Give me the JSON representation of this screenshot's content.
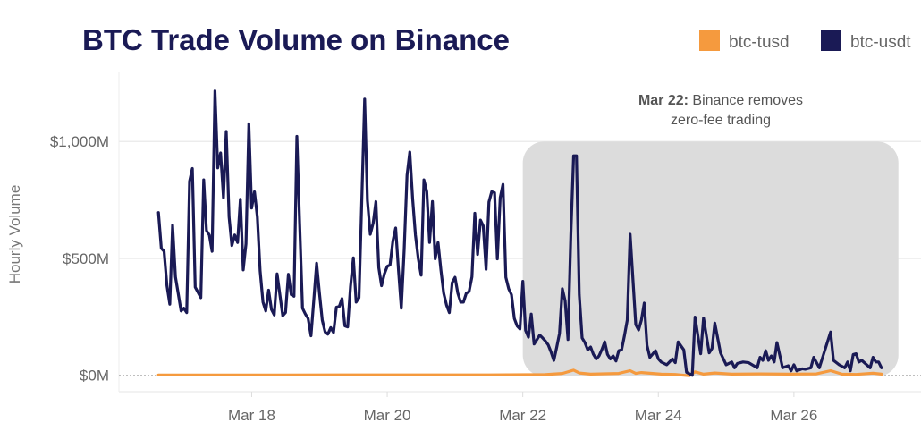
{
  "chart_data": {
    "type": "line",
    "title": "BTC Trade Volume on Binance",
    "ylabel": "Hourly Volume",
    "xlabel": "",
    "ylim": [
      -70,
      1280
    ],
    "x_range": [
      "Mar 16 01:00",
      "Mar 27 21:00"
    ],
    "grid": "horizontal",
    "legend_placement": "top-right",
    "y_ticks": [
      {
        "value": 0,
        "label": "$0M"
      },
      {
        "value": 500,
        "label": "$500M"
      },
      {
        "value": 1000,
        "label": "$1,000M"
      }
    ],
    "x_ticks": [
      {
        "value": "Mar 18 00:00",
        "label": "Mar 18"
      },
      {
        "value": "Mar 20 00:00",
        "label": "Mar 20"
      },
      {
        "value": "Mar 22 00:00",
        "label": "Mar 22"
      },
      {
        "value": "Mar 24 00:00",
        "label": "Mar 24"
      },
      {
        "value": "Mar 26 00:00",
        "label": "Mar 26"
      }
    ],
    "highlight": {
      "x_start": "Mar 22 00:00",
      "x_end": "Mar 27 13:00",
      "y_start": -5,
      "y_end": 1000,
      "color": "#dcdcdc"
    },
    "annotation": {
      "bold": "Mar 22:",
      "line1": "Binance removes",
      "line2": "zero-fee trading"
    },
    "series": [
      {
        "name": "btc-tusd",
        "color": "#f59a3e",
        "points": [
          [
            "Mar 16 15:00",
            1
          ],
          [
            "Mar 17 12:00",
            1
          ],
          [
            "Mar 18 12:00",
            1
          ],
          [
            "Mar 19 12:00",
            2
          ],
          [
            "Mar 20 12:00",
            2
          ],
          [
            "Mar 21 12:00",
            2
          ],
          [
            "Mar 22 08:00",
            3
          ],
          [
            "Mar 22 14:00",
            8
          ],
          [
            "Mar 22 18:00",
            22
          ],
          [
            "Mar 22 20:00",
            10
          ],
          [
            "Mar 23 00:00",
            5
          ],
          [
            "Mar 23 10:00",
            8
          ],
          [
            "Mar 23 14:00",
            20
          ],
          [
            "Mar 23 16:00",
            8
          ],
          [
            "Mar 23 18:00",
            12
          ],
          [
            "Mar 24 01:00",
            5
          ],
          [
            "Mar 24 06:00",
            4
          ],
          [
            "Mar 24 11:00",
            -2
          ],
          [
            "Mar 24 13:00",
            15
          ],
          [
            "Mar 24 16:00",
            5
          ],
          [
            "Mar 24 20:00",
            10
          ],
          [
            "Mar 25 02:00",
            5
          ],
          [
            "Mar 25 12:00",
            6
          ],
          [
            "Mar 25 22:00",
            5
          ],
          [
            "Mar 26 08:00",
            6
          ],
          [
            "Mar 26 13:00",
            20
          ],
          [
            "Mar 26 17:00",
            5
          ],
          [
            "Mar 26 22:00",
            4
          ],
          [
            "Mar 27 04:00",
            9
          ],
          [
            "Mar 27 07:00",
            5
          ]
        ]
      },
      {
        "name": "btc-usdt",
        "color": "#1a1a55",
        "points": [
          [
            "Mar 16 15:00",
            696
          ],
          [
            "Mar 16 16:00",
            543
          ],
          [
            "Mar 16 17:00",
            530
          ],
          [
            "Mar 16 18:00",
            383
          ],
          [
            "Mar 16 19:00",
            304
          ],
          [
            "Mar 16 20:00",
            642
          ],
          [
            "Mar 16 21:00",
            421
          ],
          [
            "Mar 16 22:00",
            350
          ],
          [
            "Mar 16 23:00",
            275
          ],
          [
            "Mar 17 00:00",
            287
          ],
          [
            "Mar 17 01:00",
            268
          ],
          [
            "Mar 17 02:00",
            830
          ],
          [
            "Mar 17 03:00",
            884
          ],
          [
            "Mar 17 04:00",
            377
          ],
          [
            "Mar 17 05:00",
            355
          ],
          [
            "Mar 17 06:00",
            332
          ],
          [
            "Mar 17 07:00",
            836
          ],
          [
            "Mar 17 08:00",
            619
          ],
          [
            "Mar 17 09:00",
            600
          ],
          [
            "Mar 17 10:00",
            530
          ],
          [
            "Mar 17 11:00",
            1216
          ],
          [
            "Mar 17 12:00",
            887
          ],
          [
            "Mar 17 13:00",
            951
          ],
          [
            "Mar 17 14:00",
            760
          ],
          [
            "Mar 17 15:00",
            1043
          ],
          [
            "Mar 17 16:00",
            677
          ],
          [
            "Mar 17 17:00",
            555
          ],
          [
            "Mar 17 18:00",
            600
          ],
          [
            "Mar 17 19:00",
            568
          ],
          [
            "Mar 17 20:00",
            753
          ],
          [
            "Mar 17 21:00",
            451
          ],
          [
            "Mar 17 22:00",
            562
          ],
          [
            "Mar 17 23:00",
            1076
          ],
          [
            "Mar 18 00:00",
            715
          ],
          [
            "Mar 18 01:00",
            785
          ],
          [
            "Mar 18 02:00",
            677
          ],
          [
            "Mar 18 03:00",
            447
          ],
          [
            "Mar 18 04:00",
            313
          ],
          [
            "Mar 18 05:00",
            275
          ],
          [
            "Mar 18 06:00",
            364
          ],
          [
            "Mar 18 07:00",
            281
          ],
          [
            "Mar 18 08:00",
            258
          ],
          [
            "Mar 18 09:00",
            434
          ],
          [
            "Mar 18 10:00",
            345
          ],
          [
            "Mar 18 11:00",
            255
          ],
          [
            "Mar 18 12:00",
            268
          ],
          [
            "Mar 18 13:00",
            432
          ],
          [
            "Mar 18 14:00",
            345
          ],
          [
            "Mar 18 15:00",
            338
          ],
          [
            "Mar 18 16:00",
            1022
          ],
          [
            "Mar 18 17:00",
            650
          ],
          [
            "Mar 18 18:00",
            287
          ],
          [
            "Mar 18 19:00",
            262
          ],
          [
            "Mar 18 20:00",
            243
          ],
          [
            "Mar 18 21:00",
            169
          ],
          [
            "Mar 18 22:00",
            320
          ],
          [
            "Mar 18 23:00",
            479
          ],
          [
            "Mar 19 00:00",
            350
          ],
          [
            "Mar 19 01:00",
            236
          ],
          [
            "Mar 19 02:00",
            185
          ],
          [
            "Mar 19 03:00",
            176
          ],
          [
            "Mar 19 04:00",
            204
          ],
          [
            "Mar 19 05:00",
            183
          ],
          [
            "Mar 19 06:00",
            291
          ],
          [
            "Mar 19 07:00",
            294
          ],
          [
            "Mar 19 08:00",
            328
          ],
          [
            "Mar 19 09:00",
            211
          ],
          [
            "Mar 19 10:00",
            207
          ],
          [
            "Mar 19 11:00",
            380
          ],
          [
            "Mar 19 12:00",
            502
          ],
          [
            "Mar 19 13:00",
            313
          ],
          [
            "Mar 19 14:00",
            332
          ],
          [
            "Mar 19 15:00",
            750
          ],
          [
            "Mar 19 16:00",
            1181
          ],
          [
            "Mar 19 17:00",
            747
          ],
          [
            "Mar 19 18:00",
            603
          ],
          [
            "Mar 19 19:00",
            651
          ],
          [
            "Mar 19 20:00",
            743
          ],
          [
            "Mar 19 21:00",
            460
          ],
          [
            "Mar 19 22:00",
            383
          ],
          [
            "Mar 19 23:00",
            434
          ],
          [
            "Mar 20 00:00",
            466
          ],
          [
            "Mar 20 01:00",
            472
          ],
          [
            "Mar 20 02:00",
            575
          ],
          [
            "Mar 20 03:00",
            630
          ],
          [
            "Mar 20 04:00",
            447
          ],
          [
            "Mar 20 05:00",
            287
          ],
          [
            "Mar 20 06:00",
            536
          ],
          [
            "Mar 20 07:00",
            856
          ],
          [
            "Mar 20 08:00",
            955
          ],
          [
            "Mar 20 09:00",
            753
          ],
          [
            "Mar 20 10:00",
            600
          ],
          [
            "Mar 20 11:00",
            498
          ],
          [
            "Mar 20 12:00",
            428
          ],
          [
            "Mar 20 13:00",
            836
          ],
          [
            "Mar 20 14:00",
            785
          ],
          [
            "Mar 20 15:00",
            568
          ],
          [
            "Mar 20 16:00",
            743
          ],
          [
            "Mar 20 17:00",
            498
          ],
          [
            "Mar 20 18:00",
            568
          ],
          [
            "Mar 20 19:00",
            450
          ],
          [
            "Mar 20 20:00",
            351
          ],
          [
            "Mar 20 21:00",
            300
          ],
          [
            "Mar 20 22:00",
            268
          ],
          [
            "Mar 20 23:00",
            396
          ],
          [
            "Mar 21 00:00",
            419
          ],
          [
            "Mar 21 01:00",
            351
          ],
          [
            "Mar 21 02:00",
            313
          ],
          [
            "Mar 21 03:00",
            313
          ],
          [
            "Mar 21 04:00",
            351
          ],
          [
            "Mar 21 05:00",
            358
          ],
          [
            "Mar 21 06:00",
            421
          ],
          [
            "Mar 21 07:00",
            693
          ],
          [
            "Mar 21 08:00",
            517
          ],
          [
            "Mar 21 09:00",
            664
          ],
          [
            "Mar 21 10:00",
            639
          ],
          [
            "Mar 21 11:00",
            453
          ],
          [
            "Mar 21 12:00",
            741
          ],
          [
            "Mar 21 13:00",
            785
          ],
          [
            "Mar 21 14:00",
            781
          ],
          [
            "Mar 21 15:00",
            498
          ],
          [
            "Mar 21 16:00",
            760
          ],
          [
            "Mar 21 17:00",
            817
          ],
          [
            "Mar 21 18:00",
            419
          ],
          [
            "Mar 21 19:00",
            370
          ],
          [
            "Mar 21 20:00",
            345
          ],
          [
            "Mar 21 21:00",
            243
          ],
          [
            "Mar 21 22:00",
            211
          ],
          [
            "Mar 21 23:00",
            198
          ],
          [
            "Mar 22 00:00",
            402
          ],
          [
            "Mar 22 01:00",
            192
          ],
          [
            "Mar 22 02:00",
            163
          ],
          [
            "Mar 22 03:00",
            262
          ],
          [
            "Mar 22 04:00",
            134
          ],
          [
            "Mar 22 05:00",
            153
          ],
          [
            "Mar 22 06:00",
            172
          ],
          [
            "Mar 22 07:00",
            160
          ],
          [
            "Mar 22 08:00",
            147
          ],
          [
            "Mar 22 09:00",
            130
          ],
          [
            "Mar 22 10:00",
            100
          ],
          [
            "Mar 22 11:00",
            64
          ],
          [
            "Mar 22 12:00",
            120
          ],
          [
            "Mar 22 13:00",
            179
          ],
          [
            "Mar 22 14:00",
            370
          ],
          [
            "Mar 22 15:00",
            319
          ],
          [
            "Mar 22 16:00",
            153
          ],
          [
            "Mar 22 17:00",
            600
          ],
          [
            "Mar 22 18:00",
            939
          ],
          [
            "Mar 22 19:00",
            939
          ],
          [
            "Mar 22 20:00",
            345
          ],
          [
            "Mar 22 21:00",
            160
          ],
          [
            "Mar 22 22:00",
            140
          ],
          [
            "Mar 22 23:00",
            109
          ],
          [
            "Mar 23 00:00",
            121
          ],
          [
            "Mar 23 01:00",
            90
          ],
          [
            "Mar 23 02:00",
            70
          ],
          [
            "Mar 23 03:00",
            83
          ],
          [
            "Mar 23 04:00",
            110
          ],
          [
            "Mar 23 05:00",
            143
          ],
          [
            "Mar 23 06:00",
            89
          ],
          [
            "Mar 23 07:00",
            70
          ],
          [
            "Mar 23 08:00",
            83
          ],
          [
            "Mar 23 09:00",
            61
          ],
          [
            "Mar 23 10:00",
            105
          ],
          [
            "Mar 23 11:00",
            109
          ],
          [
            "Mar 23 12:00",
            170
          ],
          [
            "Mar 23 13:00",
            236
          ],
          [
            "Mar 23 14:00",
            603
          ],
          [
            "Mar 23 16:00",
            217
          ],
          [
            "Mar 23 17:00",
            194
          ],
          [
            "Mar 23 18:00",
            236
          ],
          [
            "Mar 23 19:00",
            309
          ],
          [
            "Mar 23 20:00",
            128
          ],
          [
            "Mar 23 21:00",
            77
          ],
          [
            "Mar 23 23:00",
            105
          ],
          [
            "Mar 24 00:00",
            70
          ],
          [
            "Mar 24 01:00",
            57
          ],
          [
            "Mar 24 03:00",
            45
          ],
          [
            "Mar 24 05:00",
            70
          ],
          [
            "Mar 24 06:00",
            54
          ],
          [
            "Mar 24 07:00",
            143
          ],
          [
            "Mar 24 09:00",
            109
          ],
          [
            "Mar 24 10:00",
            13
          ],
          [
            "Mar 24 12:00",
            0
          ],
          [
            "Mar 24 13:00",
            249
          ],
          [
            "Mar 24 15:00",
            92
          ],
          [
            "Mar 24 16:00",
            245
          ],
          [
            "Mar 24 18:00",
            96
          ],
          [
            "Mar 24 19:00",
            115
          ],
          [
            "Mar 24 20:00",
            223
          ],
          [
            "Mar 24 22:00",
            96
          ],
          [
            "Mar 25 00:00",
            45
          ],
          [
            "Mar 25 02:00",
            57
          ],
          [
            "Mar 25 03:00",
            32
          ],
          [
            "Mar 25 04:00",
            51
          ],
          [
            "Mar 25 06:00",
            57
          ],
          [
            "Mar 25 08:00",
            54
          ],
          [
            "Mar 25 11:00",
            32
          ],
          [
            "Mar 25 12:00",
            77
          ],
          [
            "Mar 25 13:00",
            64
          ],
          [
            "Mar 25 14:00",
            105
          ],
          [
            "Mar 25 15:00",
            64
          ],
          [
            "Mar 25 16:00",
            83
          ],
          [
            "Mar 25 17:00",
            57
          ],
          [
            "Mar 25 18:00",
            140
          ],
          [
            "Mar 25 20:00",
            32
          ],
          [
            "Mar 25 22:00",
            41
          ],
          [
            "Mar 25 23:00",
            19
          ],
          [
            "Mar 26 00:00",
            45
          ],
          [
            "Mar 26 01:00",
            19
          ],
          [
            "Mar 26 03:00",
            28
          ],
          [
            "Mar 26 04:00",
            26
          ],
          [
            "Mar 26 06:00",
            32
          ],
          [
            "Mar 26 07:00",
            77
          ],
          [
            "Mar 26 09:00",
            32
          ],
          [
            "Mar 26 11:00",
            109
          ],
          [
            "Mar 26 13:00",
            185
          ],
          [
            "Mar 26 14:00",
            64
          ],
          [
            "Mar 26 16:00",
            45
          ],
          [
            "Mar 26 18:00",
            32
          ],
          [
            "Mar 26 19:00",
            57
          ],
          [
            "Mar 26 20:00",
            19
          ],
          [
            "Mar 26 21:00",
            89
          ],
          [
            "Mar 26 22:00",
            92
          ],
          [
            "Mar 26 23:00",
            57
          ],
          [
            "Mar 27 00:00",
            64
          ],
          [
            "Mar 27 03:00",
            32
          ],
          [
            "Mar 27 04:00",
            77
          ],
          [
            "Mar 27 05:00",
            57
          ],
          [
            "Mar 27 06:00",
            57
          ],
          [
            "Mar 27 07:00",
            32
          ]
        ]
      }
    ]
  }
}
